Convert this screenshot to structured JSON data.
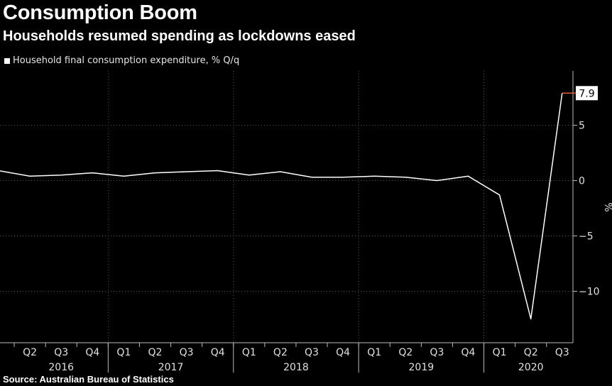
{
  "title": "Consumption Boom",
  "subtitle": "Households resumed spending as lockdowns eased",
  "legend_label": "Household final consumption expenditure, % Q/q",
  "source": "Source: Australian Bureau of Statistics",
  "colors": {
    "background": "#000000",
    "line": "#ffffff",
    "grid": "#555555",
    "last_marker": "#e05a3a"
  },
  "chart_data": {
    "type": "line",
    "title": "Consumption Boom",
    "subtitle": "Households resumed spending as lockdowns eased",
    "ylabel": "%",
    "ylim": [
      -14,
      10
    ],
    "yticks": [
      -10,
      -5,
      0,
      5
    ],
    "grid": true,
    "legend": "top-left",
    "x": [
      "2016 Q1",
      "2016 Q2",
      "2016 Q3",
      "2016 Q4",
      "2017 Q1",
      "2017 Q2",
      "2017 Q3",
      "2017 Q4",
      "2018 Q1",
      "2018 Q2",
      "2018 Q3",
      "2018 Q4",
      "2019 Q1",
      "2019 Q2",
      "2019 Q3",
      "2019 Q4",
      "2020 Q1",
      "2020 Q2",
      "2020 Q3"
    ],
    "quarter_labels": [
      "Q2",
      "Q3",
      "Q4",
      "Q1",
      "Q2",
      "Q3",
      "Q4",
      "Q1",
      "Q2",
      "Q3",
      "Q4",
      "Q1",
      "Q2",
      "Q3",
      "Q4",
      "Q1",
      "Q2",
      "Q3"
    ],
    "years": [
      "2016",
      "2017",
      "2018",
      "2019",
      "2020"
    ],
    "series": [
      {
        "name": "Household final consumption expenditure, % Q/q",
        "values": [
          0.9,
          0.4,
          0.5,
          0.7,
          0.4,
          0.7,
          0.8,
          0.9,
          0.5,
          0.8,
          0.3,
          0.3,
          0.4,
          0.3,
          0.0,
          0.4,
          -1.3,
          -12.5,
          7.9
        ]
      }
    ],
    "last_value_label": "7.9"
  }
}
